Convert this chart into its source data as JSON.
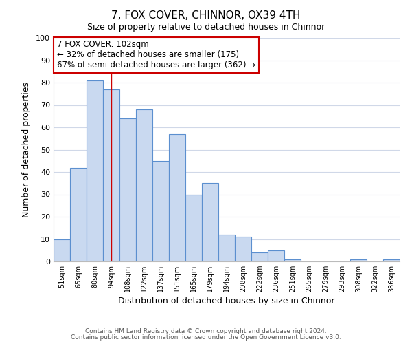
{
  "title": "7, FOX COVER, CHINNOR, OX39 4TH",
  "subtitle": "Size of property relative to detached houses in Chinnor",
  "xlabel": "Distribution of detached houses by size in Chinnor",
  "ylabel": "Number of detached properties",
  "categories": [
    "51sqm",
    "65sqm",
    "80sqm",
    "94sqm",
    "108sqm",
    "122sqm",
    "137sqm",
    "151sqm",
    "165sqm",
    "179sqm",
    "194sqm",
    "208sqm",
    "222sqm",
    "236sqm",
    "251sqm",
    "265sqm",
    "279sqm",
    "293sqm",
    "308sqm",
    "322sqm",
    "336sqm"
  ],
  "values": [
    10,
    42,
    81,
    77,
    64,
    68,
    45,
    57,
    30,
    35,
    12,
    11,
    4,
    5,
    1,
    0,
    0,
    0,
    1,
    0,
    1
  ],
  "bar_color": "#c9d9f0",
  "bar_edge_color": "#5b8fcf",
  "highlight_bar_index": 3,
  "highlight_bar_color": "#cc0000",
  "annotation_title": "7 FOX COVER: 102sqm",
  "annotation_line1": "← 32% of detached houses are smaller (175)",
  "annotation_line2": "67% of semi-detached houses are larger (362) →",
  "annotation_box_color": "#ffffff",
  "annotation_box_edge": "#cc0000",
  "ylim": [
    0,
    100
  ],
  "yticks": [
    0,
    10,
    20,
    30,
    40,
    50,
    60,
    70,
    80,
    90,
    100
  ],
  "footer1": "Contains HM Land Registry data © Crown copyright and database right 2024.",
  "footer2": "Contains public sector information licensed under the Open Government Licence v3.0.",
  "background_color": "#ffffff",
  "grid_color": "#d0d8e8"
}
